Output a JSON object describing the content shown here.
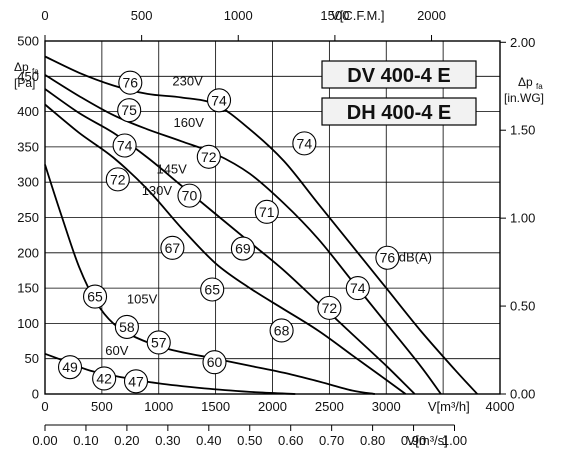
{
  "chart_data": {
    "type": "line",
    "models": [
      "DV 400-4 E",
      "DH 400-4 E"
    ],
    "x_primary": {
      "label": "V[m³/h]",
      "ticks": [
        0,
        500,
        1000,
        1500,
        2000,
        2500,
        3000,
        4000
      ],
      "range": [
        0,
        4000
      ]
    },
    "x_top": {
      "label": "V[C.F.M.]",
      "ticks": [
        0,
        500,
        1000,
        1500,
        2000
      ]
    },
    "x_bottom": {
      "label": "V[m³/s]",
      "ticks": [
        "0.00",
        "0.10",
        "0.20",
        "0.30",
        "0.40",
        "0.50",
        "0.60",
        "0.70",
        "0.80",
        "0.90",
        "1.00"
      ]
    },
    "y_left": {
      "label_main": "Δp",
      "label_sub": "fa",
      "label_unit": "[Pa]",
      "ticks": [
        0,
        50,
        100,
        150,
        200,
        250,
        300,
        350,
        400,
        450,
        500
      ],
      "range": [
        0,
        500
      ]
    },
    "y_right": {
      "label_main": "Δp",
      "label_sub": "fa",
      "label_unit": "[in.WG]",
      "ticks": [
        "0.00",
        "0.50",
        "1.00",
        "1.50",
        "2.00"
      ]
    },
    "series": [
      {
        "name": "230V",
        "points": [
          [
            0,
            478
          ],
          [
            300,
            455
          ],
          [
            600,
            437
          ],
          [
            900,
            425
          ],
          [
            1200,
            420
          ],
          [
            1500,
            410
          ],
          [
            1800,
            375
          ],
          [
            2100,
            330
          ],
          [
            2400,
            270
          ],
          [
            2700,
            210
          ],
          [
            3000,
            150
          ],
          [
            3300,
            90
          ],
          [
            3600,
            35
          ],
          [
            3800,
            0
          ]
        ]
      },
      {
        "name": "160V",
        "points": [
          [
            0,
            452
          ],
          [
            300,
            422
          ],
          [
            600,
            395
          ],
          [
            900,
            375
          ],
          [
            1200,
            358
          ],
          [
            1500,
            340
          ],
          [
            1800,
            312
          ],
          [
            2100,
            270
          ],
          [
            2400,
            220
          ],
          [
            2700,
            160
          ],
          [
            3000,
            100
          ],
          [
            3300,
            40
          ],
          [
            3480,
            0
          ]
        ]
      },
      {
        "name": "145V",
        "points": [
          [
            0,
            432
          ],
          [
            300,
            398
          ],
          [
            600,
            370
          ],
          [
            900,
            335
          ],
          [
            1200,
            295
          ],
          [
            1500,
            255
          ],
          [
            1800,
            215
          ],
          [
            2100,
            175
          ],
          [
            2400,
            130
          ],
          [
            2700,
            85
          ],
          [
            3000,
            40
          ],
          [
            3250,
            0
          ]
        ]
      },
      {
        "name": "130V",
        "points": [
          [
            0,
            410
          ],
          [
            300,
            370
          ],
          [
            600,
            335
          ],
          [
            900,
            290
          ],
          [
            1200,
            235
          ],
          [
            1500,
            185
          ],
          [
            1800,
            150
          ],
          [
            2100,
            120
          ],
          [
            2400,
            90
          ],
          [
            2700,
            55
          ],
          [
            3000,
            20
          ],
          [
            3170,
            0
          ]
        ]
      },
      {
        "name": "105V",
        "points": [
          [
            0,
            325
          ],
          [
            150,
            250
          ],
          [
            300,
            180
          ],
          [
            450,
            130
          ],
          [
            600,
            100
          ],
          [
            800,
            80
          ],
          [
            1100,
            63
          ],
          [
            1500,
            50
          ],
          [
            1800,
            40
          ],
          [
            2100,
            30
          ],
          [
            2400,
            18
          ],
          [
            2700,
            5
          ],
          [
            2900,
            0
          ]
        ]
      },
      {
        "name": "60V",
        "points": [
          [
            0,
            57
          ],
          [
            200,
            45
          ],
          [
            400,
            33
          ],
          [
            700,
            23
          ],
          [
            1000,
            15
          ],
          [
            1400,
            8
          ],
          [
            1800,
            3
          ],
          [
            2200,
            0
          ]
        ]
      }
    ],
    "series_label_points": [
      {
        "text": "230V",
        "x": 1120,
        "y": 437
      },
      {
        "text": "160V",
        "x": 1130,
        "y": 378
      },
      {
        "text": "145V",
        "x": 980,
        "y": 312
      },
      {
        "text": "130V",
        "x": 850,
        "y": 282
      },
      {
        "text": "105V",
        "x": 720,
        "y": 128
      },
      {
        "text": "60V",
        "x": 530,
        "y": 55
      }
    ],
    "dba_markers": [
      {
        "value": "76",
        "x": 750,
        "y": 441
      },
      {
        "value": "74",
        "x": 1530,
        "y": 416
      },
      {
        "value": "74",
        "x": 2280,
        "y": 355
      },
      {
        "value": "76",
        "x": 3010,
        "y": 193
      },
      {
        "value": "75",
        "x": 740,
        "y": 402
      },
      {
        "value": "72",
        "x": 1440,
        "y": 336
      },
      {
        "value": "71",
        "x": 1950,
        "y": 258
      },
      {
        "value": "74",
        "x": 2750,
        "y": 150
      },
      {
        "value": "74",
        "x": 700,
        "y": 352
      },
      {
        "value": "70",
        "x": 1270,
        "y": 281
      },
      {
        "value": "69",
        "x": 1740,
        "y": 206
      },
      {
        "value": "72",
        "x": 2500,
        "y": 122
      },
      {
        "value": "72",
        "x": 640,
        "y": 304
      },
      {
        "value": "67",
        "x": 1120,
        "y": 207
      },
      {
        "value": "65",
        "x": 1470,
        "y": 148
      },
      {
        "value": "68",
        "x": 2080,
        "y": 90
      },
      {
        "value": "65",
        "x": 440,
        "y": 138
      },
      {
        "value": "58",
        "x": 720,
        "y": 95
      },
      {
        "value": "57",
        "x": 1000,
        "y": 73
      },
      {
        "value": "60",
        "x": 1490,
        "y": 45
      },
      {
        "value": "49",
        "x": 220,
        "y": 38
      },
      {
        "value": "42",
        "x": 520,
        "y": 22
      },
      {
        "value": "47",
        "x": 800,
        "y": 18
      }
    ],
    "dba_unit_label": "dB(A)",
    "grid": true
  },
  "colors": {
    "line": "#000000",
    "grid": "#000000",
    "badge_fill": "#ffffff"
  }
}
